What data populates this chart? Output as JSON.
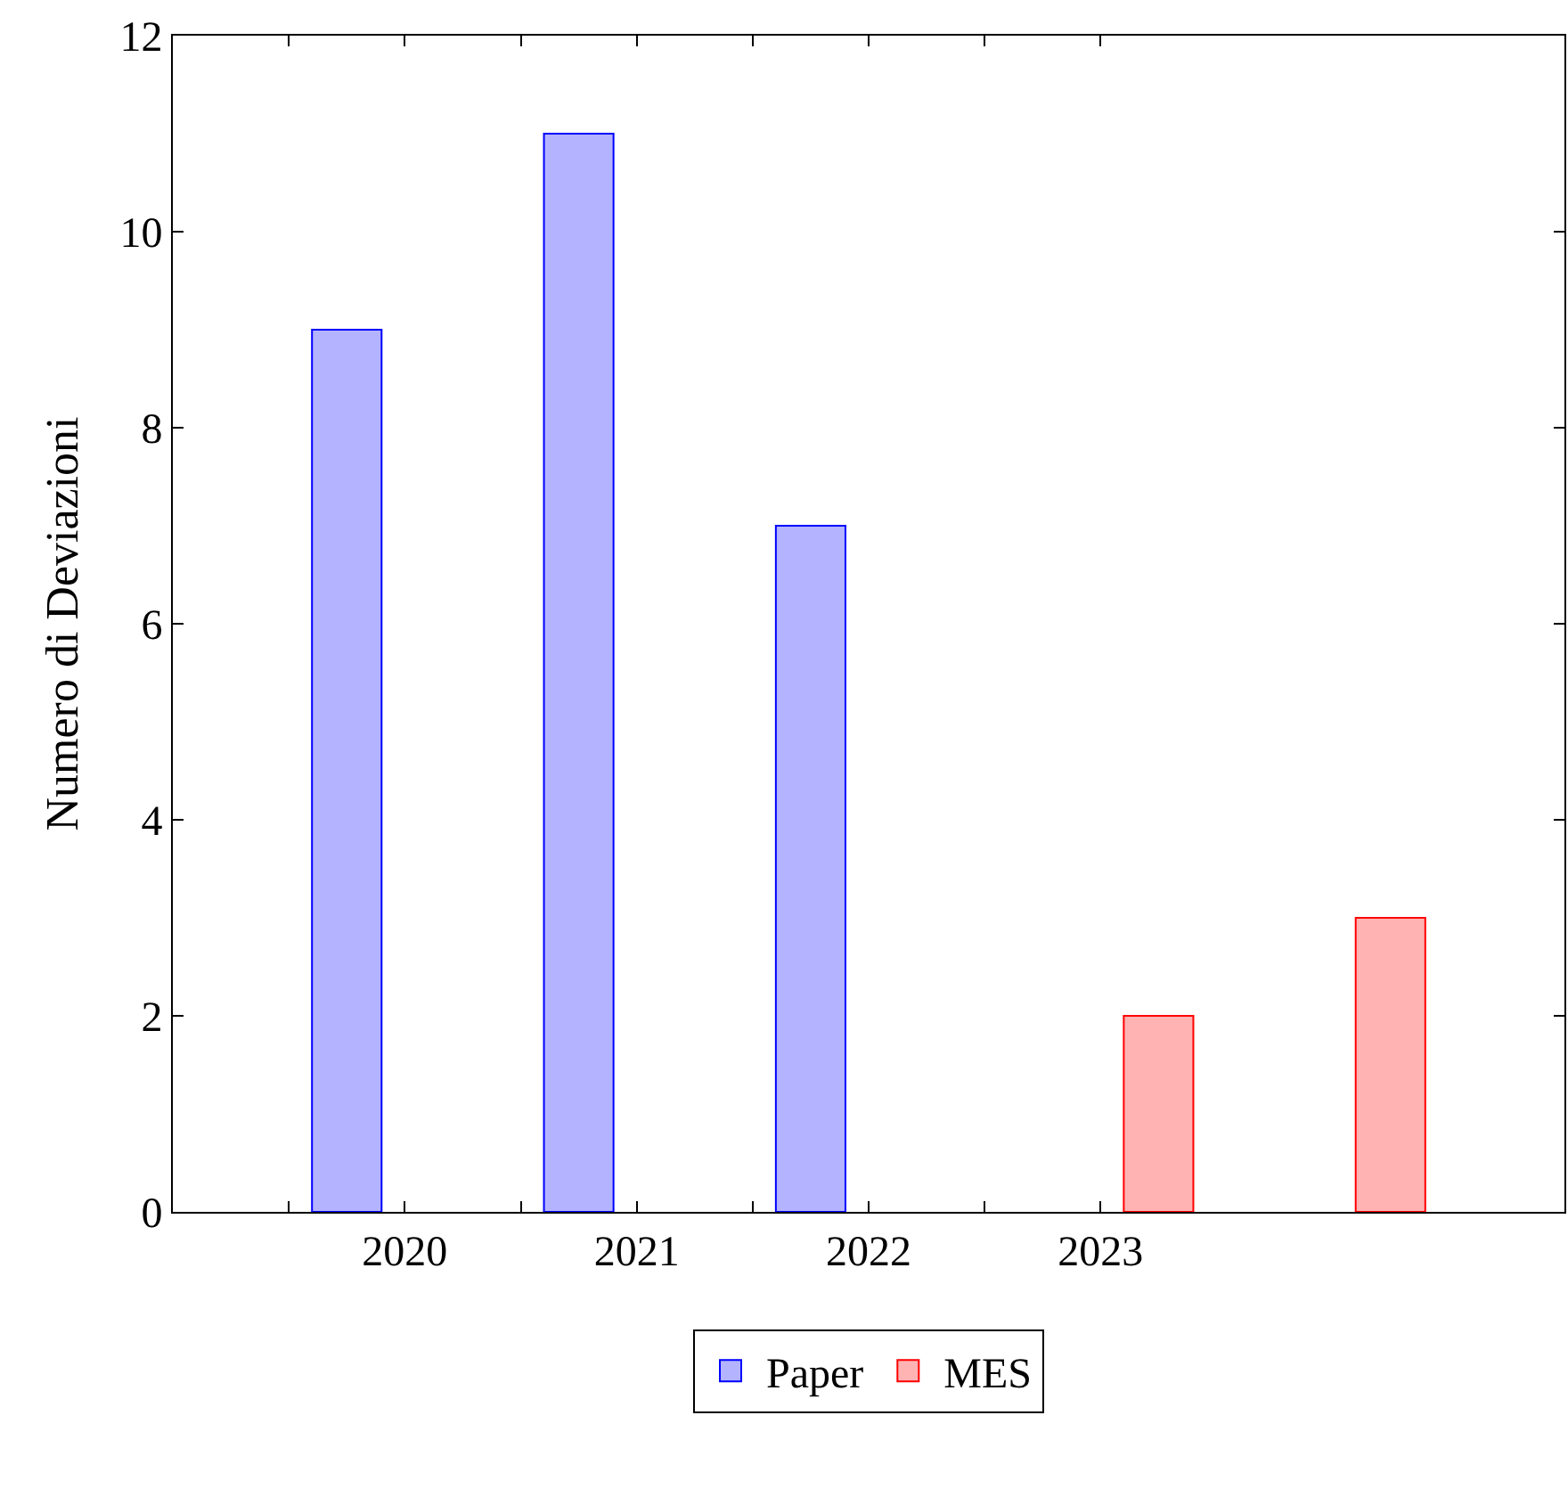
{
  "chart_data": {
    "type": "bar",
    "ylabel": "Numero di Deviazioni",
    "series": [
      {
        "name": "Paper",
        "color": "#b3b3ff",
        "x": [
          2019.75,
          2020.75,
          2021.75
        ],
        "values": [
          9,
          11,
          7
        ]
      },
      {
        "name": "MES",
        "color": "#ffb3b3",
        "x": [
          2023.25,
          2024.25
        ],
        "values": [
          2,
          3
        ]
      }
    ],
    "xlim": [
      2019,
      2025
    ],
    "xticks": [
      {
        "value": 2019.5,
        "label": null
      },
      {
        "value": 2020,
        "label": "2020"
      },
      {
        "value": 2020.5,
        "label": null
      },
      {
        "value": 2021,
        "label": "2021"
      },
      {
        "value": 2021.5,
        "label": null
      },
      {
        "value": 2022,
        "label": "2022"
      },
      {
        "value": 2022.5,
        "label": null
      },
      2023
    ],
    "ylim": [
      0,
      12
    ],
    "yticks": [
      0,
      2,
      4,
      6,
      8,
      10,
      12
    ],
    "legend": "bottom"
  }
}
